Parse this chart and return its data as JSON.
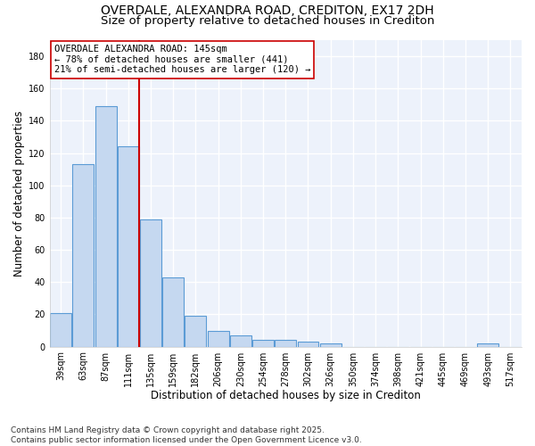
{
  "title_line1": "OVERDALE, ALEXANDRA ROAD, CREDITON, EX17 2DH",
  "title_line2": "Size of property relative to detached houses in Crediton",
  "xlabel": "Distribution of detached houses by size in Crediton",
  "ylabel": "Number of detached properties",
  "categories": [
    "39sqm",
    "63sqm",
    "87sqm",
    "111sqm",
    "135sqm",
    "159sqm",
    "182sqm",
    "206sqm",
    "230sqm",
    "254sqm",
    "278sqm",
    "302sqm",
    "326sqm",
    "350sqm",
    "374sqm",
    "398sqm",
    "421sqm",
    "445sqm",
    "469sqm",
    "493sqm",
    "517sqm"
  ],
  "values": [
    21,
    113,
    149,
    124,
    79,
    43,
    19,
    10,
    7,
    4,
    4,
    3,
    2,
    0,
    0,
    0,
    0,
    0,
    0,
    2,
    0
  ],
  "bar_color": "#c5d8f0",
  "bar_edge_color": "#5b9bd5",
  "vline_x_index": 3.5,
  "vline_color": "#cc0000",
  "annotation_line1": "OVERDALE ALEXANDRA ROAD: 145sqm",
  "annotation_line2": "← 78% of detached houses are smaller (441)",
  "annotation_line3": "21% of semi-detached houses are larger (120) →",
  "annotation_box_edge_color": "#cc0000",
  "ylim": [
    0,
    190
  ],
  "yticks": [
    0,
    20,
    40,
    60,
    80,
    100,
    120,
    140,
    160,
    180
  ],
  "background_color": "#edf2fb",
  "grid_color": "#ffffff",
  "footer_line1": "Contains HM Land Registry data © Crown copyright and database right 2025.",
  "footer_line2": "Contains public sector information licensed under the Open Government Licence v3.0.",
  "title_fontsize": 10,
  "subtitle_fontsize": 9.5,
  "axis_label_fontsize": 8.5,
  "tick_fontsize": 7,
  "annotation_fontsize": 7.5,
  "footer_fontsize": 6.5
}
